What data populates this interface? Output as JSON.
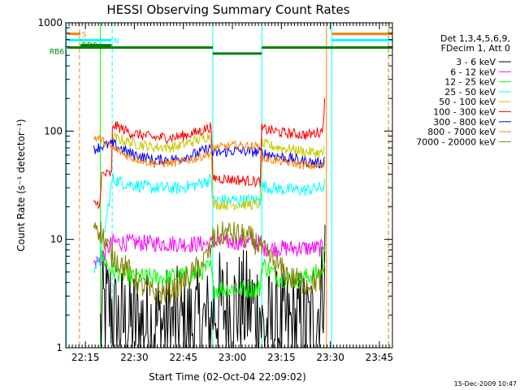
{
  "chart_data": {
    "type": "line",
    "title": "HESSI Observing Summary Count Rates",
    "xlabel": "Start Time (02-Oct-04 22:09:02)",
    "ylabel": "Count Rate (s⁻¹ detector⁻¹)",
    "yscale": "log",
    "xlim_min_from_start": [
      0,
      100
    ],
    "ylim": [
      1,
      1000
    ],
    "x_ticks": [
      {
        "minute": 6,
        "label": "22:15"
      },
      {
        "minute": 21,
        "label": "22:30"
      },
      {
        "minute": 36,
        "label": "22:45"
      },
      {
        "minute": 51,
        "label": "23:00"
      },
      {
        "minute": 66,
        "label": "23:15"
      },
      {
        "minute": 81,
        "label": "23:30"
      },
      {
        "minute": 96,
        "label": "23:45"
      }
    ],
    "y_ticks": [
      {
        "value": 1,
        "label": "1"
      },
      {
        "value": 10,
        "label": "10"
      },
      {
        "value": 100,
        "label": "100"
      },
      {
        "value": 1000,
        "label": "1000"
      }
    ],
    "legend": {
      "header": [
        "Det 1,3,4,5,6,9,",
        "FDecim 1, Att 0"
      ],
      "placement": "right"
    },
    "flags": [
      {
        "label": "S",
        "color": "#ff8000",
        "level": 790,
        "segments": [
          [
            0.5,
            4.5
          ],
          [
            81.5,
            100
          ]
        ]
      },
      {
        "label": "N",
        "color": "#00ffff",
        "level": 690,
        "segments": [
          [
            0.5,
            14
          ],
          [
            81.5,
            100
          ]
        ]
      },
      {
        "label": "RD0",
        "color": "#008000",
        "level": 620,
        "segments": [
          [
            4.5,
            14
          ]
        ]
      },
      {
        "label": "RB6",
        "color": "#008000",
        "level_steps": [
          [
            0.5,
            14,
            590
          ],
          [
            14,
            45,
            590
          ],
          [
            45,
            60,
            520
          ],
          [
            60,
            82,
            590
          ],
          [
            82,
            100,
            590
          ]
        ]
      }
    ],
    "vlines": [
      {
        "minute": 0.2,
        "color": "#00ffff",
        "style": "solid"
      },
      {
        "minute": 4.2,
        "color": "#ff8000",
        "style": "dashed"
      },
      {
        "minute": 10.6,
        "color": "#00ff00",
        "style": "solid"
      },
      {
        "minute": 14.2,
        "color": "#00ffff",
        "style": "dashed"
      },
      {
        "minute": 45,
        "color": "#00ffff",
        "style": "solid"
      },
      {
        "minute": 60,
        "color": "#00ffff",
        "style": "solid"
      },
      {
        "minute": 79.8,
        "color": "#ff8000",
        "style": "solid"
      },
      {
        "minute": 81.4,
        "color": "#00ffff",
        "style": "solid"
      },
      {
        "minute": 98.8,
        "color": "#00ffff",
        "style": "dashed"
      },
      {
        "minute": 98.8,
        "color": "#ff8000",
        "style": "dashed"
      }
    ],
    "series": [
      {
        "name": "3 - 6 keV",
        "color": "#000000",
        "noise": 0.55,
        "points": [
          [
            10.6,
            1.4
          ],
          [
            11.2,
            2.2
          ],
          [
            14,
            2.4
          ],
          [
            15,
            1.7
          ],
          [
            44.5,
            1.6
          ],
          [
            45,
            2.3
          ],
          [
            59.5,
            2.4
          ],
          [
            60,
            1.5
          ],
          [
            76,
            1.6
          ],
          [
            78.5,
            3.2
          ],
          [
            79.4,
            7
          ]
        ]
      },
      {
        "name": "6 - 12 keV",
        "color": "#ff00ff",
        "noise": 0.08,
        "points": [
          [
            8.5,
            6
          ],
          [
            10.6,
            6.5
          ],
          [
            14.2,
            9.4
          ],
          [
            44.5,
            9
          ],
          [
            45,
            9.6
          ],
          [
            59.5,
            9.3
          ],
          [
            60,
            8.3
          ],
          [
            78.5,
            8.3
          ],
          [
            79.3,
            10
          ]
        ]
      },
      {
        "name": "12 - 25 keV",
        "color": "#00ff00",
        "noise": 0.09,
        "points": [
          [
            10.6,
            7.2
          ],
          [
            14,
            5.2
          ],
          [
            20,
            4.5
          ],
          [
            30,
            4.4
          ],
          [
            40,
            4.8
          ],
          [
            44.5,
            5.6
          ],
          [
            45,
            3.5
          ],
          [
            59.5,
            3.5
          ],
          [
            60,
            6
          ],
          [
            65,
            4.5
          ],
          [
            70,
            4.2
          ],
          [
            78.5,
            5
          ],
          [
            79.4,
            9
          ]
        ]
      },
      {
        "name": "25 - 50 keV",
        "color": "#00ffff",
        "noise": 0.06,
        "points": [
          [
            8.5,
            5.5
          ],
          [
            10.5,
            6.3
          ],
          [
            14.2,
            36
          ],
          [
            18,
            33
          ],
          [
            26,
            30
          ],
          [
            34,
            29.5
          ],
          [
            40,
            32
          ],
          [
            44.5,
            36
          ],
          [
            45,
            23
          ],
          [
            59.5,
            23
          ],
          [
            60,
            31
          ],
          [
            66,
            29
          ],
          [
            73,
            28.5
          ],
          [
            78.5,
            30
          ],
          [
            79.3,
            33
          ]
        ]
      },
      {
        "name": "50 - 100 keV",
        "color": "#c8c800",
        "noise": 0.05,
        "points": [
          [
            14.2,
            88
          ],
          [
            20,
            78
          ],
          [
            27,
            71
          ],
          [
            34,
            72
          ],
          [
            40,
            82
          ],
          [
            44.5,
            92
          ],
          [
            45,
            21
          ],
          [
            59.5,
            21
          ],
          [
            60,
            76
          ],
          [
            66,
            70
          ],
          [
            73,
            65
          ],
          [
            78.5,
            62
          ],
          [
            79.3,
            68
          ]
        ]
      },
      {
        "name": "100 - 300 keV",
        "color": "#ff0000",
        "noise": 0.05,
        "points": [
          [
            8.5,
            21
          ],
          [
            10.6,
            22
          ],
          [
            11,
            40
          ],
          [
            14,
            40
          ],
          [
            14.3,
            115
          ],
          [
            20,
            96
          ],
          [
            27,
            87
          ],
          [
            34,
            88
          ],
          [
            40,
            97
          ],
          [
            44.5,
            110
          ],
          [
            45,
            37
          ],
          [
            59.5,
            34
          ],
          [
            60,
            105
          ],
          [
            67,
            96
          ],
          [
            74,
            92
          ],
          [
            78.5,
            100
          ],
          [
            79.3,
            190
          ]
        ]
      },
      {
        "name": "300 - 800 keV",
        "color": "#0000ff",
        "noise": 0.05,
        "points": [
          [
            8.5,
            68
          ],
          [
            10.6,
            72
          ],
          [
            14.2,
            76
          ],
          [
            20,
            62
          ],
          [
            27,
            54
          ],
          [
            34,
            55
          ],
          [
            40,
            62
          ],
          [
            44.5,
            70
          ],
          [
            45,
            62
          ],
          [
            52,
            66
          ],
          [
            59.5,
            64
          ],
          [
            60,
            63
          ],
          [
            67,
            57
          ],
          [
            74,
            52
          ],
          [
            78.5,
            50
          ],
          [
            79.3,
            56
          ]
        ]
      },
      {
        "name": "800 - 7000 keV",
        "color": "#ff8000",
        "noise": 0.04,
        "points": [
          [
            8.5,
            88
          ],
          [
            10.6,
            84
          ],
          [
            14.2,
            70
          ],
          [
            20,
            57
          ],
          [
            27,
            50
          ],
          [
            34,
            51
          ],
          [
            40,
            56
          ],
          [
            44.5,
            63
          ],
          [
            45,
            70
          ],
          [
            52,
            74
          ],
          [
            59.5,
            72
          ],
          [
            60,
            56
          ],
          [
            67,
            52
          ],
          [
            74,
            48
          ],
          [
            78.5,
            47
          ],
          [
            79.3,
            50
          ]
        ]
      },
      {
        "name": "7000 - 20000 keV",
        "color": "#808000",
        "noise": 0.12,
        "points": [
          [
            8.5,
            15
          ],
          [
            10.6,
            12
          ],
          [
            14.2,
            7
          ],
          [
            18,
            5.6
          ],
          [
            22,
            4
          ],
          [
            26,
            3.2
          ],
          [
            30,
            3.2
          ],
          [
            34,
            3.6
          ],
          [
            38,
            4.6
          ],
          [
            42,
            6.2
          ],
          [
            44.5,
            8
          ],
          [
            45,
            10
          ],
          [
            49,
            11.5
          ],
          [
            53,
            11
          ],
          [
            57,
            10
          ],
          [
            59.5,
            8.6
          ],
          [
            60,
            8
          ],
          [
            64,
            6
          ],
          [
            69,
            4.4
          ],
          [
            74,
            3.9
          ],
          [
            78.5,
            4.3
          ],
          [
            79.3,
            6
          ]
        ]
      }
    ]
  },
  "footer": {
    "timestamp": "15-Dec-2009 10:47"
  }
}
